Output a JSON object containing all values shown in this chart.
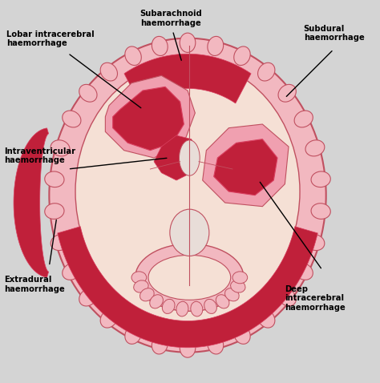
{
  "bg_color": "#d4d4d4",
  "brain_outer_color": "#f2b8c0",
  "brain_outer_edge": "#c05060",
  "brain_inner_color": "#f5e0d5",
  "dark_red": "#c0203a",
  "medium_red": "#d94060",
  "light_red": "#f0a0b0",
  "line_color": "#000000",
  "text_color": "#000000",
  "labels": {
    "subarachnoid": "Subarachnoid\nhaemorrhage",
    "subdural": "Subdural\nhaemorrhage",
    "lobar": "Lobar intracerebral\nhaemorrhage",
    "intraventricular": "Intraventricular\nhaemorrhage",
    "extradural": "Extradural\nhaemorrhage",
    "deep": "Deep\nintracerebral\nhaemorrhage"
  },
  "figsize": [
    4.74,
    4.78
  ],
  "dpi": 100
}
